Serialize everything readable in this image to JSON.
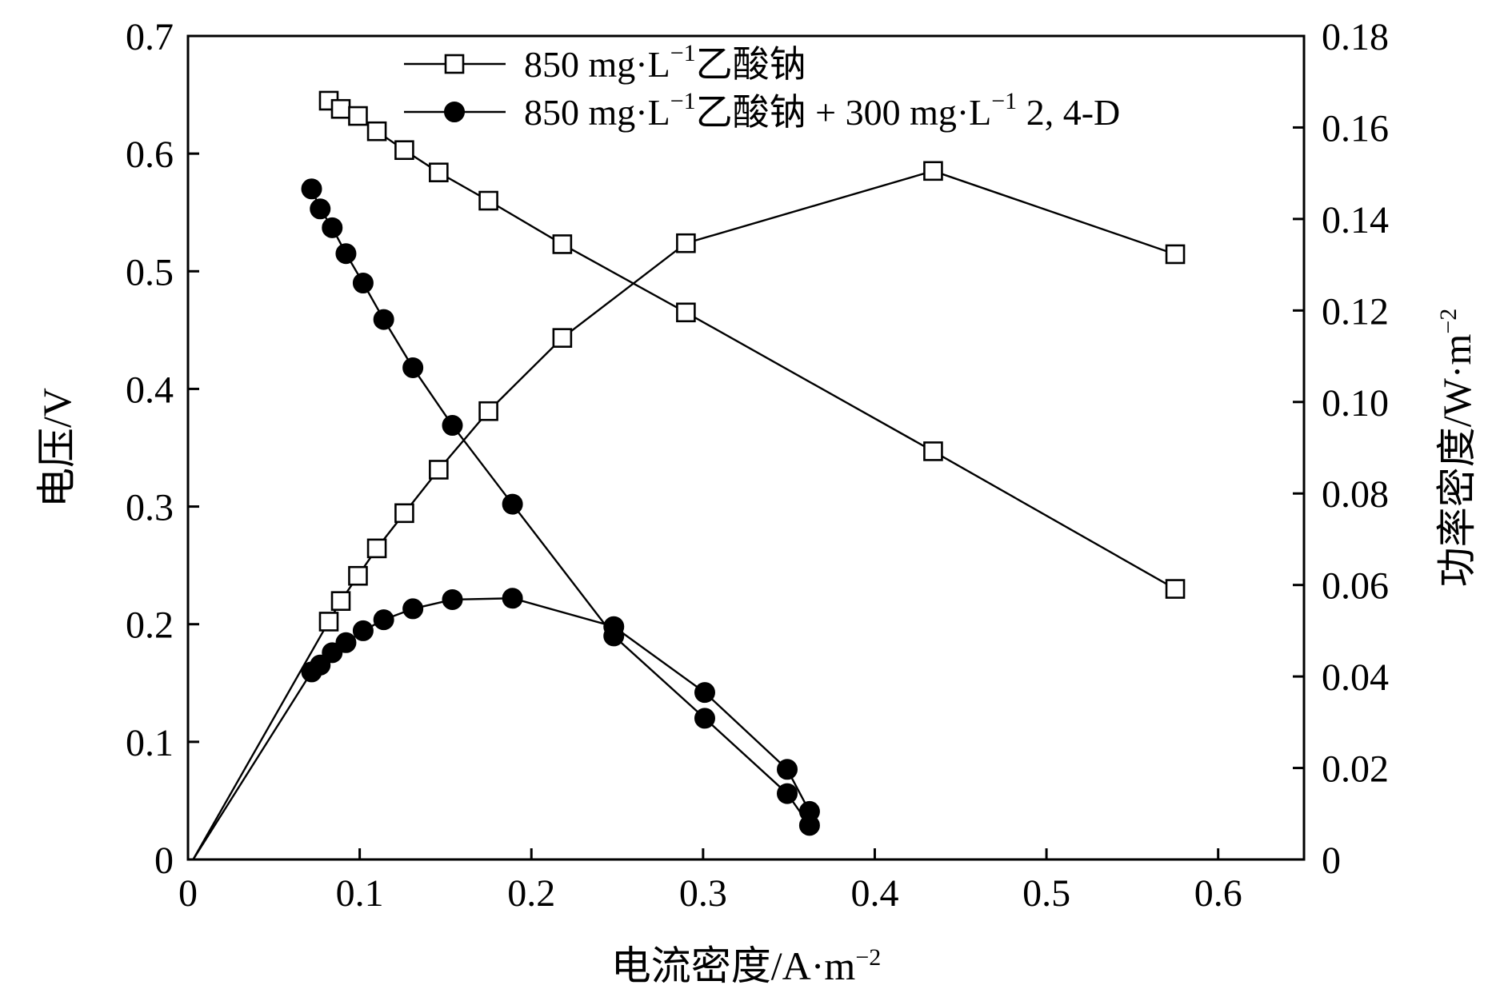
{
  "chart_data": {
    "type": "line",
    "x_axis": {
      "label": "电流密度/A·m",
      "label_sup": "−2",
      "range": [
        0,
        0.65
      ],
      "ticks": [
        0,
        0.1,
        0.2,
        0.3,
        0.4,
        0.5,
        0.6
      ],
      "tick_labels": [
        "0",
        "0.1",
        "0.2",
        "0.3",
        "0.4",
        "0.5",
        "0.6"
      ]
    },
    "y_left": {
      "label": "电压/V",
      "range": [
        0,
        0.7
      ],
      "ticks": [
        0,
        0.1,
        0.2,
        0.3,
        0.4,
        0.5,
        0.6,
        0.7
      ],
      "tick_labels": [
        "0",
        "0.1",
        "0.2",
        "0.3",
        "0.4",
        "0.5",
        "0.6",
        "0.7"
      ]
    },
    "y_right": {
      "label": "功率密度/W·m",
      "label_sup": "−2",
      "range": [
        0,
        0.18
      ],
      "ticks": [
        0,
        0.02,
        0.04,
        0.06,
        0.08,
        0.1,
        0.12,
        0.14,
        0.16,
        0.18
      ],
      "tick_labels": [
        "0",
        "0.02",
        "0.04",
        "0.06",
        "0.08",
        "0.10",
        "0.12",
        "0.14",
        "0.16",
        "0.18"
      ]
    },
    "legend": {
      "placement": "top-center",
      "entries": [
        {
          "pre": "850 mg·L",
          "sup": "−1",
          "post": "乙酸钠",
          "marker": "open-square"
        },
        {
          "pre": "850 mg·L",
          "sup": "−1",
          "post": "乙酸钠 + 300 mg·L",
          "sup2": "−1",
          "post2": " 2, 4-D",
          "marker": "filled-circle"
        }
      ]
    },
    "series": [
      {
        "name": "850 mg·L−1乙酸钠",
        "kind": "voltage",
        "axis": "left",
        "marker": "open-square",
        "x": [
          0.082,
          0.089,
          0.099,
          0.11,
          0.126,
          0.146,
          0.175,
          0.218,
          0.29,
          0.434,
          0.575
        ],
        "y": [
          0.645,
          0.638,
          0.632,
          0.619,
          0.603,
          0.584,
          0.56,
          0.523,
          0.465,
          0.347,
          0.23
        ]
      },
      {
        "name": "850 mg·L−1乙酸钠",
        "kind": "power",
        "axis": "right",
        "marker": "open-square",
        "x": [
          0.003,
          0.082,
          0.089,
          0.099,
          0.11,
          0.126,
          0.146,
          0.175,
          0.218,
          0.29,
          0.434,
          0.575
        ],
        "y": [
          0.0,
          0.052,
          0.0565,
          0.062,
          0.068,
          0.0757,
          0.0852,
          0.098,
          0.114,
          0.1347,
          0.1505,
          0.1323
        ]
      },
      {
        "name": "850 mg·L−1乙酸钠 + 300 mg·L−1 2, 4-D",
        "kind": "voltage",
        "axis": "left",
        "marker": "filled-circle",
        "x": [
          0.072,
          0.077,
          0.084,
          0.092,
          0.102,
          0.114,
          0.131,
          0.154,
          0.189,
          0.248,
          0.301,
          0.349,
          0.362
        ],
        "y": [
          0.57,
          0.553,
          0.537,
          0.515,
          0.49,
          0.459,
          0.418,
          0.369,
          0.302,
          0.19,
          0.12,
          0.056,
          0.029
        ]
      },
      {
        "name": "850 mg·L−1乙酸钠 + 300 mg·L−1 2, 4-D",
        "kind": "power",
        "axis": "right",
        "marker": "filled-circle",
        "x": [
          0.003,
          0.072,
          0.077,
          0.084,
          0.092,
          0.102,
          0.114,
          0.131,
          0.154,
          0.189,
          0.248,
          0.301,
          0.349,
          0.362
        ],
        "y": [
          0.0,
          0.041,
          0.0425,
          0.0452,
          0.0474,
          0.05,
          0.0524,
          0.0548,
          0.0568,
          0.0571,
          0.0509,
          0.0365,
          0.0197,
          0.0105
        ]
      }
    ]
  }
}
